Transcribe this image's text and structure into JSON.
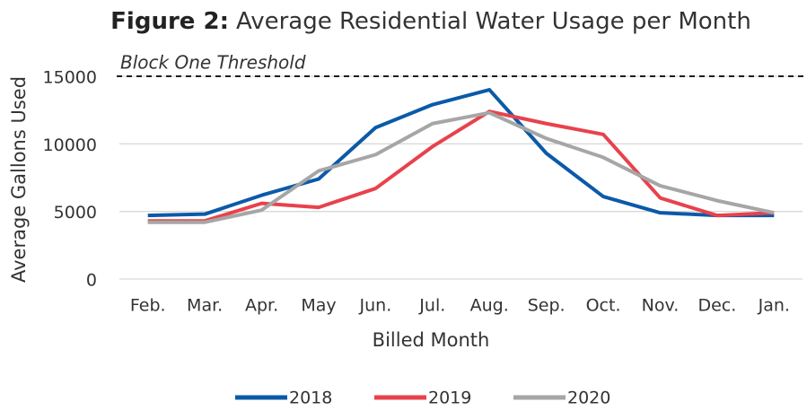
{
  "chart_data": {
    "type": "line",
    "title_label": "Figure 2:",
    "title": "Average Residential Water Usage per Month",
    "x_label": "Billed Month",
    "y_label": "Average Gallons Used",
    "categories": [
      "Feb.",
      "Mar.",
      "Apr.",
      "May",
      "Jun.",
      "Jul.",
      "Aug.",
      "Sep.",
      "Oct.",
      "Nov.",
      "Dec.",
      "Jan."
    ],
    "series": [
      {
        "name": "2018",
        "color": "#0b5aa8",
        "values": [
          4700,
          4800,
          6200,
          7400,
          11200,
          12900,
          14000,
          9300,
          6100,
          4900,
          4700,
          4700
        ]
      },
      {
        "name": "2019",
        "color": "#e8424c",
        "values": [
          4300,
          4300,
          5600,
          5300,
          6700,
          9800,
          12400,
          11500,
          10700,
          6000,
          4700,
          4900
        ]
      },
      {
        "name": "2020",
        "color": "#a6a6a6",
        "values": [
          4200,
          4200,
          5100,
          8000,
          9200,
          11500,
          12300,
          10400,
          9000,
          6900,
          5800,
          4900
        ]
      }
    ],
    "threshold": {
      "label": "Block One Threshold",
      "value": 15000
    },
    "ylim": [
      0,
      15000
    ],
    "yticks": [
      0,
      5000,
      10000,
      15000
    ],
    "grid": true,
    "legend": "bottom"
  }
}
